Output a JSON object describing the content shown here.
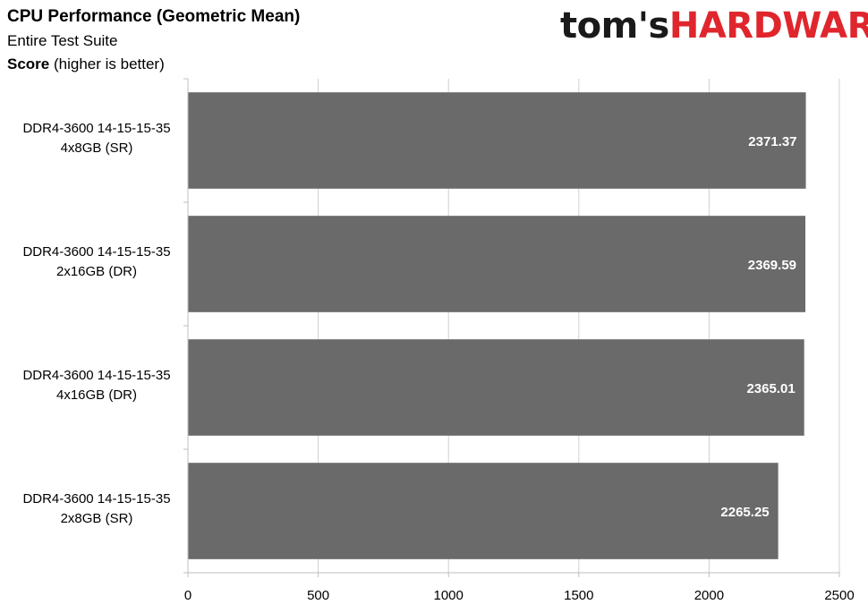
{
  "header": {
    "title": "CPU Performance (Geometric Mean)",
    "subtitle": "Entire Test Suite",
    "unit_bold": "Score",
    "unit_rest": " (higher is better)"
  },
  "logo": {
    "part1": "tom's",
    "part2": "HARDWARE"
  },
  "colors": {
    "bar": "#6b6a6a",
    "grid": "#d0d0d0",
    "label_inside": "#ffffff",
    "brand_red": "#e0262d"
  },
  "chart_data": {
    "type": "bar",
    "orientation": "horizontal",
    "categories": [
      [
        "DDR4-3600 14-15-15-35",
        "4x8GB (SR)"
      ],
      [
        "DDR4-3600 14-15-15-35",
        "2x16GB (DR)"
      ],
      [
        "DDR4-3600 14-15-15-35",
        "4x16GB (DR)"
      ],
      [
        "DDR4-3600 14-15-15-35",
        "2x8GB (SR)"
      ]
    ],
    "values": [
      2371.37,
      2369.59,
      2365.01,
      2265.25
    ],
    "value_labels": [
      "2371.37",
      "2369.59",
      "2365.01",
      "2265.25"
    ],
    "xlim": [
      0,
      2500
    ],
    "xticks": [
      0,
      500,
      1000,
      1500,
      2000,
      2500
    ],
    "grid": true,
    "legend": "none"
  }
}
